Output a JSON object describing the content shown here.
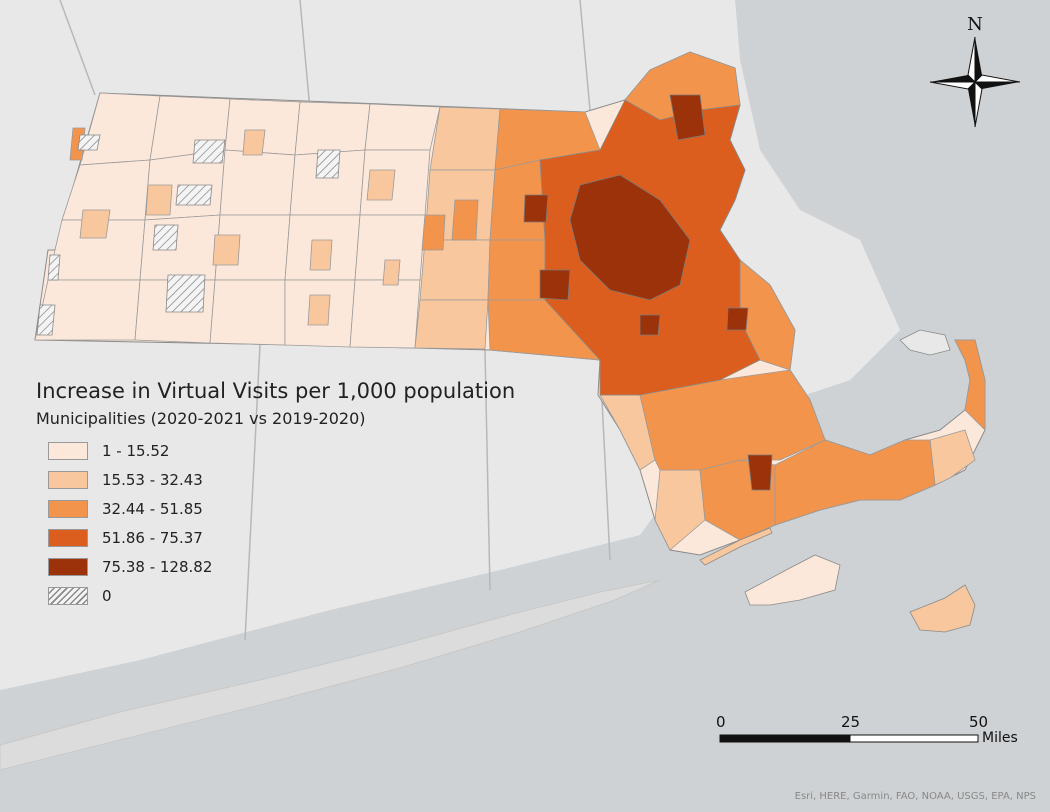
{
  "legend": {
    "title": "Increase in Virtual Visits per 1,000 population",
    "subtitle": "Municipalities (2020-2021 vs 2019-2020)",
    "classes": [
      {
        "label": "1 - 15.52",
        "color": "#fce8da"
      },
      {
        "label": "15.53 - 32.43",
        "color": "#f9c79d"
      },
      {
        "label": "32.44 - 51.85",
        "color": "#f3944c"
      },
      {
        "label": "51.86 - 75.37",
        "color": "#db5e1e"
      },
      {
        "label": "75.38 - 128.82",
        "color": "#9b3209"
      },
      {
        "label": "0",
        "color": "hatched"
      }
    ]
  },
  "north_arrow": {
    "label": "N"
  },
  "scale_bar": {
    "ticks": [
      "0",
      "25",
      "50"
    ],
    "unit": "Miles"
  },
  "attribution": "Esri, HERE, Garmin, FAO, NOAA, USGS, EPA, NPS",
  "colors": {
    "water": "#cfd2d4",
    "land": "#e6e6e6",
    "border": "#8a8a8a"
  }
}
